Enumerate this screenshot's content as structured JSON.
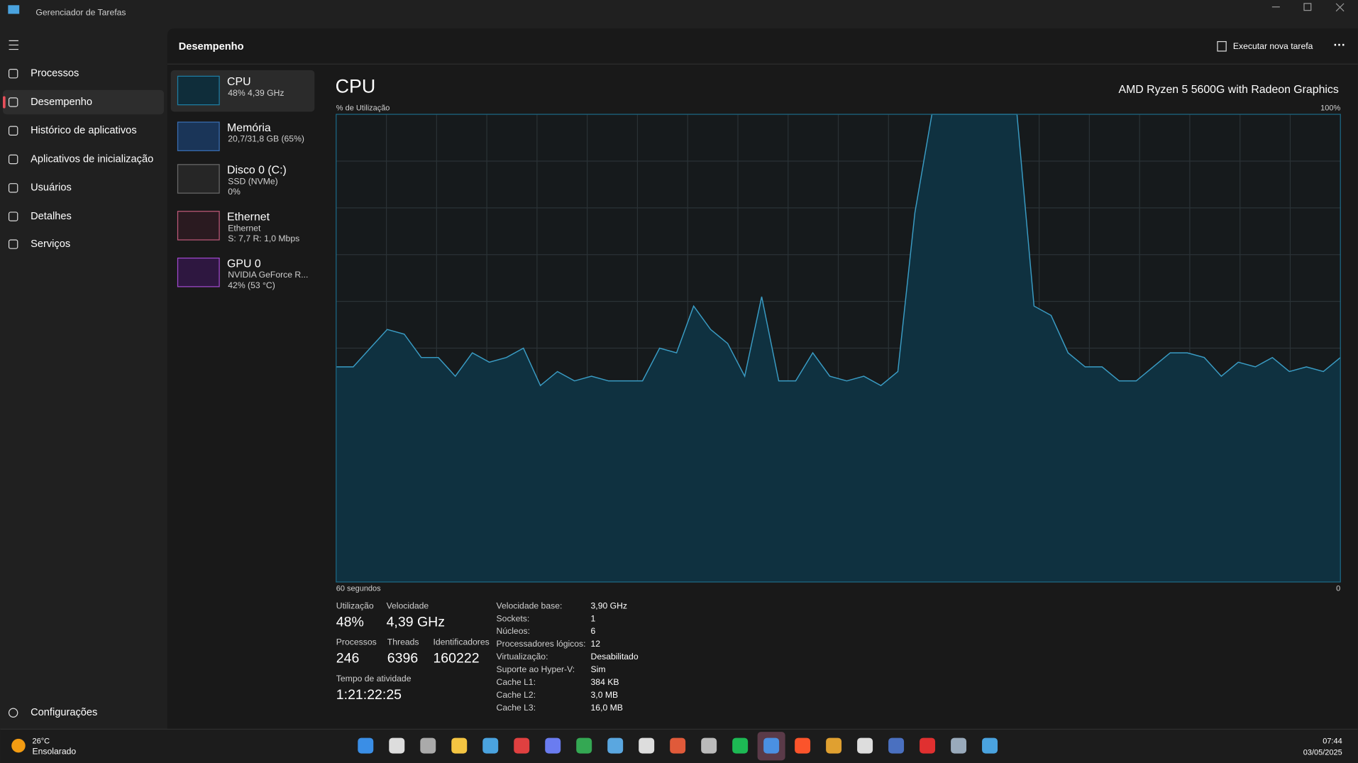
{
  "window": {
    "title": "Gerenciador de Tarefas"
  },
  "nav": {
    "items": [
      "Processos",
      "Desempenho",
      "Histórico de aplicativos",
      "Aplicativos de inicialização",
      "Usuários",
      "Detalhes",
      "Serviços"
    ],
    "settings": "Configurações"
  },
  "header": {
    "title": "Desempenho",
    "action": "Executar nova tarefa"
  },
  "devices": [
    {
      "name": "CPU",
      "lines": [
        "48%  4,39 GHz"
      ]
    },
    {
      "name": "Memória",
      "lines": [
        "20,7/31,8 GB (65%)"
      ]
    },
    {
      "name": "Disco 0 (C:)",
      "lines": [
        "SSD (NVMe)",
        "0%"
      ]
    },
    {
      "name": "Ethernet",
      "lines": [
        "Ethernet",
        "S: 7,7 R: 1,0 Mbps"
      ]
    },
    {
      "name": "GPU 0",
      "lines": [
        "NVIDIA GeForce R...",
        "42% (53 °C)"
      ]
    }
  ],
  "cpu": {
    "title": "CPU",
    "model": "AMD Ryzen 5 5600G with Radeon Graphics",
    "y_label": "% de Utilização",
    "y_max_label": "100%",
    "x_label": "60 segundos",
    "x_end_label": "0",
    "ylim": [
      0,
      100
    ],
    "usage": [
      46,
      46,
      50,
      54,
      53,
      48,
      48,
      44,
      49,
      47,
      48,
      50,
      42,
      45,
      43,
      44,
      43,
      43,
      43,
      50,
      49,
      59,
      54,
      51,
      44,
      61,
      43,
      43,
      49,
      44,
      43,
      44,
      42,
      45,
      79,
      100,
      100,
      100,
      100,
      100,
      100,
      59,
      57,
      49,
      46,
      46,
      43,
      43,
      46,
      49,
      49,
      48,
      44,
      47,
      46,
      48,
      45,
      46,
      45,
      48
    ]
  },
  "stats": [
    {
      "label": "Utilização",
      "value": "48%"
    },
    {
      "label": "Velocidade",
      "value": "4,39 GHz"
    },
    {
      "label": "Processos",
      "value": "246"
    },
    {
      "label": "Threads",
      "value": "6396"
    },
    {
      "label": "Identificadores",
      "value": "160222"
    },
    {
      "label": "Tempo de atividade",
      "value": "1:21:22:25"
    }
  ],
  "specs": [
    [
      "Velocidade base:",
      "3,90 GHz"
    ],
    [
      "Sockets:",
      "1"
    ],
    [
      "Núcleos:",
      "6"
    ],
    [
      "Processadores lógicos:",
      "12"
    ],
    [
      "Virtualização:",
      "Desabilitado"
    ],
    [
      "Suporte ao Hyper-V:",
      "Sim"
    ],
    [
      "Cache L1:",
      "384 KB"
    ],
    [
      "Cache L2:",
      "3,0 MB"
    ],
    [
      "Cache L3:",
      "16,0 MB"
    ]
  ],
  "taskbar": {
    "weather_temp": "26°C",
    "weather_desc": "Ensolarado",
    "time": "07:44",
    "date": "03/05/2025"
  }
}
